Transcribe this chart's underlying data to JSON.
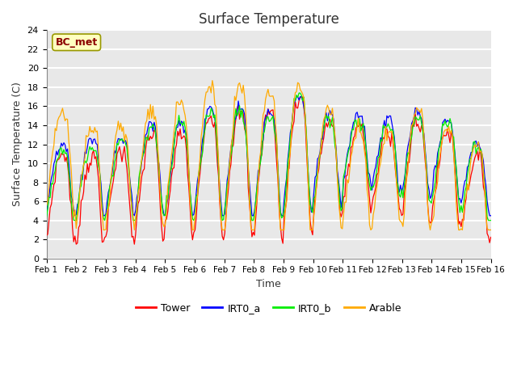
{
  "title": "Surface Temperature",
  "xlabel": "Time",
  "ylabel": "Surface Temperature (C)",
  "annotation": "BC_met",
  "ylim": [
    0,
    24
  ],
  "bg_color": "#e8e8e8",
  "grid_color": "white",
  "colors": {
    "Tower": "#ff0000",
    "IRT0_a": "#0000ff",
    "IRT0_b": "#00ee00",
    "Arable": "#ffaa00"
  },
  "xtick_labels": [
    "Feb 1",
    "Feb 2",
    "Feb 3",
    "Feb 4",
    "Feb 5",
    "Feb 6",
    "Feb 7",
    "Feb 8",
    "Feb 9",
    "Feb 10",
    "Feb 11",
    "Feb 12",
    "Feb 13",
    "Feb 14",
    "Feb 15",
    "Feb 16"
  ],
  "ytick_labels": [
    0,
    2,
    4,
    6,
    8,
    10,
    12,
    14,
    16,
    18,
    20,
    22,
    24
  ]
}
